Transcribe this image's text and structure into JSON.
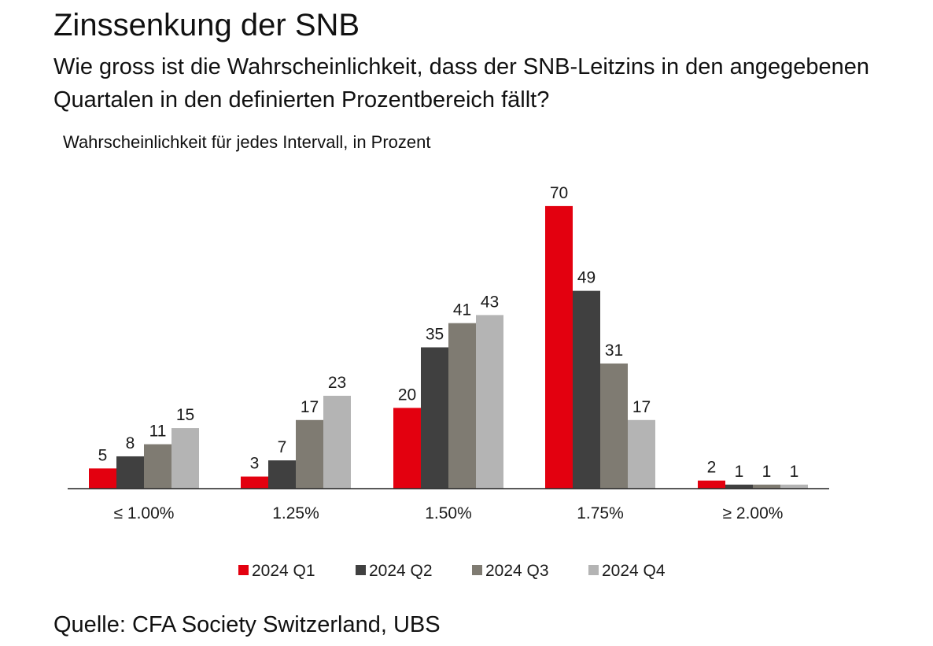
{
  "chart_data": {
    "type": "bar",
    "title": "Zinssenkung der SNB",
    "subtitle": "Wie gross ist die Wahrscheinlichkeit, dass der SNB-Leitzins in den angegebenen Quartalen in den definierten Prozentbereich fällt?",
    "ylabel": "Wahrscheinlichkeit für jedes Intervall, in Prozent",
    "xlabel": "",
    "categories": [
      "≤ 1.00%",
      "1.25%",
      "1.50%",
      "1.75%",
      "≥ 2.00%"
    ],
    "series": [
      {
        "name": "2024 Q1",
        "color": "#e3000f",
        "values": [
          5,
          3,
          20,
          70,
          2
        ]
      },
      {
        "name": "2024 Q2",
        "color": "#404040",
        "values": [
          8,
          7,
          35,
          49,
          1
        ]
      },
      {
        "name": "2024 Q3",
        "color": "#7f7b72",
        "values": [
          11,
          17,
          41,
          31,
          1
        ]
      },
      {
        "name": "2024 Q4",
        "color": "#b4b4b4",
        "values": [
          15,
          23,
          43,
          17,
          1
        ]
      }
    ],
    "ylim": [
      0,
      70
    ],
    "grid": false,
    "legend_position": "bottom",
    "data_labels": true,
    "source": "Quelle: CFA Society Switzerland, UBS"
  }
}
